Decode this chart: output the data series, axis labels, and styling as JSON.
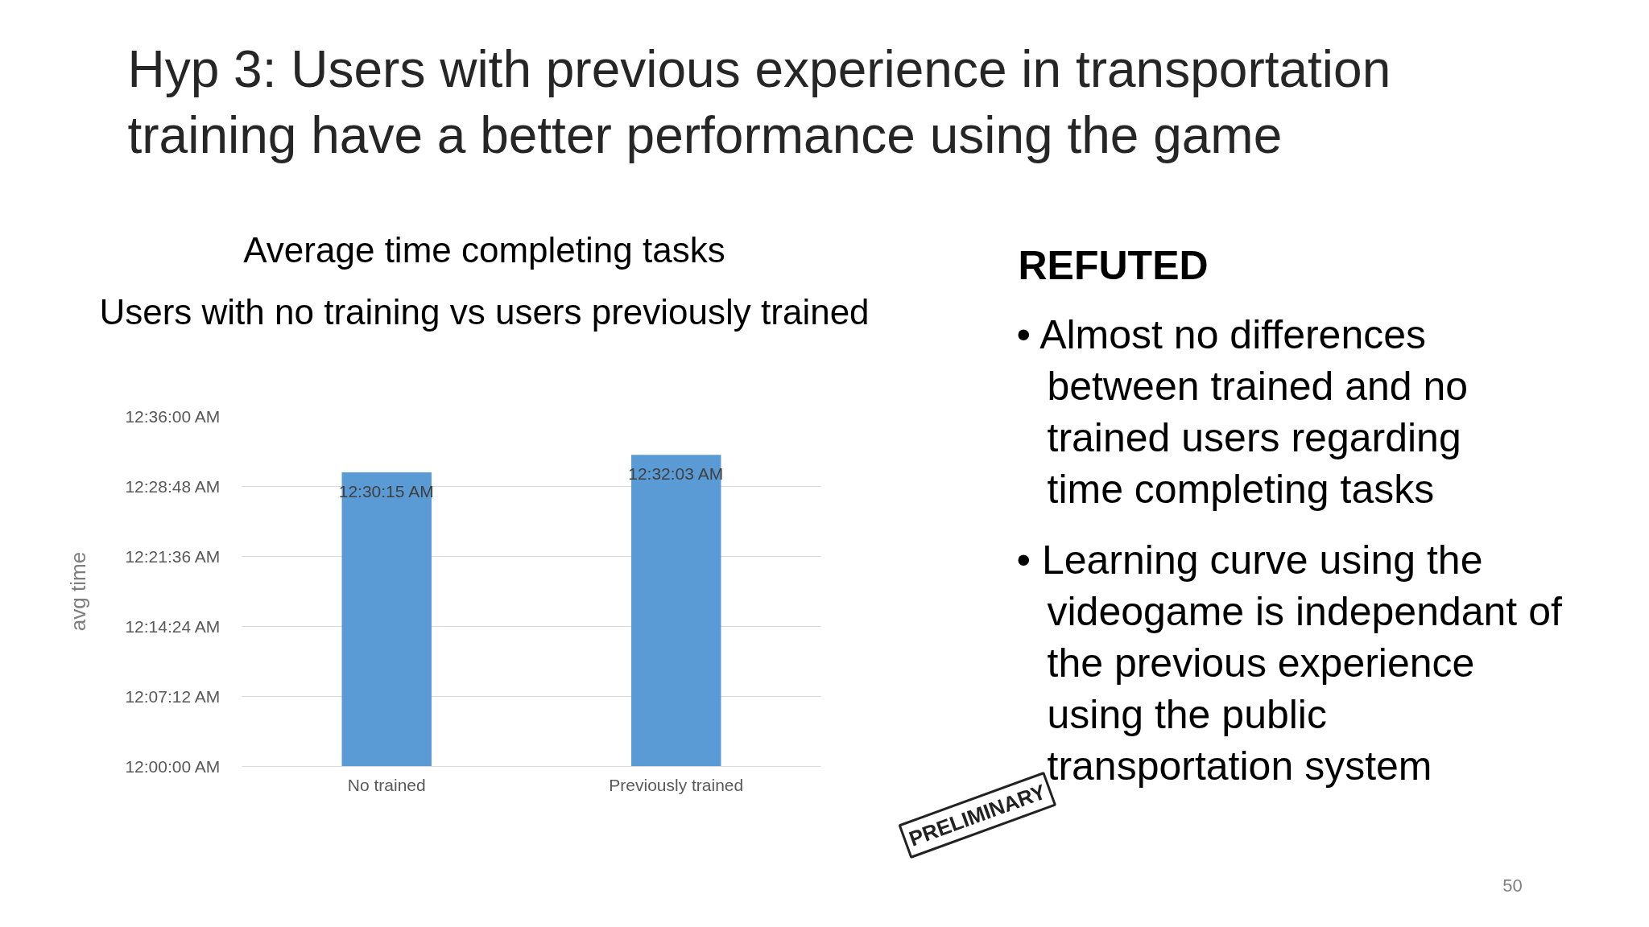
{
  "chart_data": {
    "type": "bar",
    "title": "Hyp 3: Users with previous experience in transportation training have a better performance using the game",
    "subtitle": "Average time completing tasks",
    "ylabel": "avg time",
    "categories": [
      "No trained",
      "Previously trained"
    ],
    "values": [
      0.504167,
      0.534167
    ],
    "value_labels": [
      "12:30:15 AM",
      "12:32:03 AM"
    ],
    "color": "#5b9bd5",
    "ylim": [
      0,
      0.6
    ],
    "yticks": [
      {
        "value": 0,
        "label": "12:00:00 AM"
      },
      {
        "value": 0.12,
        "label": "12:07:12 AM"
      },
      {
        "value": 0.24,
        "label": "12:14:24 AM"
      },
      {
        "value": 0.36,
        "label": "12:21:36 AM"
      },
      {
        "value": 0.48,
        "label": "12:28:48 AM"
      },
      {
        "value": 0.6,
        "label": "12:36:00 AM"
      }
    ],
    "grid": "y",
    "annotations": [
      "Users with no training vs users previously trained",
      "REFUTED",
      "• Almost no differences between trained and no trained users regarding time completing tasks",
      "• Learning curve using the videogame is independant of the previous experience using the public transportation system",
      "PRELIMINARY",
      "50"
    ]
  }
}
